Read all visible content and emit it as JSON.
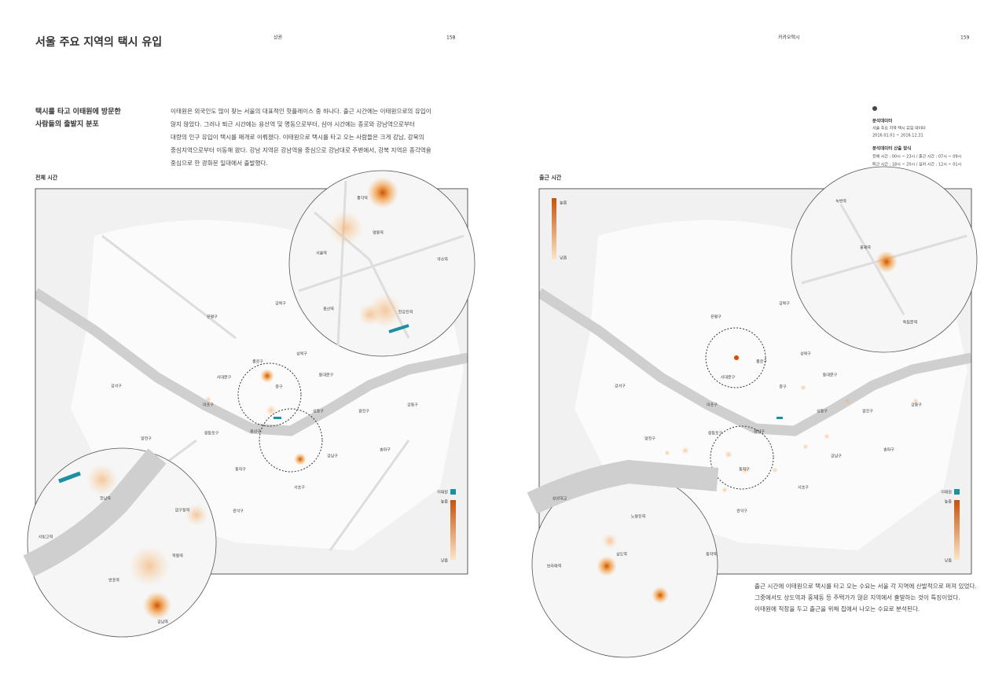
{
  "left_page": {
    "title": "서울 주요 지역의 택시 유입",
    "running_head": "상권",
    "page_number": "158",
    "subtitle": [
      "택시를 타고 이태원에 방문한",
      "사람들의 출발지 분포"
    ],
    "body": [
      "이태원은 외국인도 많이 찾는 서울의 대표적인 핫플레이스 중 하나다. 출근 시간에는 이태원으로의 유입이",
      "많지 않았다. 그러나 퇴근 시간에는 용산역 및 명동으로부터, 심야 시간에는 종로와 강남역으로부터",
      "대량의 인구 유입이 택시를 매개로 이뤄졌다. 이태원으로 택시를 타고 오는 사람들은 크게 강남, 강북의",
      "중심지역으로부터 이동해 왔다. 강남 지역은 강남역을 중심으로 강남대로 주변에서, 강북 지역은 종각역을",
      "중심으로 한 광화문 일대에서 출발했다."
    ],
    "map": {
      "title": "전체 시간",
      "districts": [
        "은평구",
        "강북구",
        "성북구",
        "종로구",
        "서대문구",
        "중구",
        "동대문구",
        "마포구",
        "강서구",
        "성동구",
        "광진구",
        "강동구",
        "양천구",
        "영등포구",
        "용산구",
        "동작구",
        "강남구",
        "송파구",
        "관악구",
        "서초구"
      ],
      "zoom_labels": [
        "종각역",
        "명동역",
        "서울역",
        "약수역",
        "용산역",
        "한강진역",
        "한남역",
        "압구정역",
        "서빙고역",
        "학동역",
        "반포역",
        "강남역"
      ],
      "legend": {
        "highlight": "이태원",
        "high": "높음",
        "low": "낮음"
      }
    }
  },
  "right_page": {
    "running_head": "카카오택시",
    "page_number": "159",
    "info": {
      "heading": "분석데이터",
      "data": "서울 주요 지역 택시 유입 데이터",
      "period": "2016.01.01 ~ 2016.12.31",
      "method_heading": "분석데이터 산출 방식",
      "method": [
        "전체 시간 : 00시 ~ 23시 / 출근 시간 : 07시 ~ 09시",
        "퇴근 시간 : 18시 ~ 20시 / 심야 시간 : 12시 ~ 01시"
      ]
    },
    "map": {
      "title": "출근 시간",
      "districts": [
        "은평구",
        "강북구",
        "성북구",
        "종로구",
        "서대문구",
        "중구",
        "동대문구",
        "마포구",
        "강서구",
        "성동구",
        "광진구",
        "강동구",
        "양천구",
        "영등포구",
        "용산구",
        "동작구",
        "강남구",
        "송파구",
        "관악구",
        "서초구"
      ],
      "zoom_labels": [
        "녹번역",
        "홍제역",
        "독립문역",
        "성산대교",
        "노량진역",
        "상도역",
        "보라매역",
        "동작역"
      ],
      "legend": {
        "highlight": "이태원",
        "high": "높음",
        "low": "낮음"
      },
      "top_legend": {
        "high": "높음",
        "low": "낮음"
      }
    },
    "caption": [
      "출근 시간에 이태원으로 택시를 타고 오는 수요는 서울 각 지역에 산발적으로 퍼져 있었다.",
      "그중에서도 상도역과 홍제동 등 주택가가 많은 지역에서 출발하는 것이 특징이었다.",
      "이태원에 직장을 두고 출근을 위해 집에서 나오는 수요로 분석된다."
    ]
  }
}
